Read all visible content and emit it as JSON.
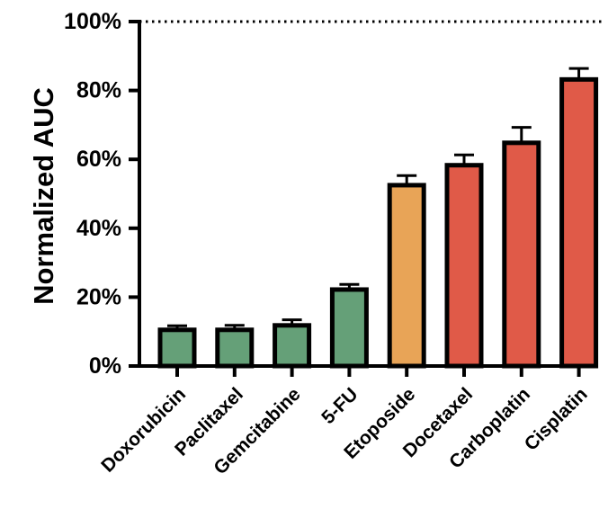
{
  "chart_data": {
    "type": "bar",
    "title": "",
    "xlabel": "",
    "ylabel": "Normalized AUC",
    "ylim": [
      0,
      100
    ],
    "yticks": [
      0,
      20,
      40,
      60,
      80,
      100
    ],
    "ytick_labels": [
      "0%",
      "20%",
      "40%",
      "60%",
      "80%",
      "100%"
    ],
    "reference_line": {
      "y": 100,
      "style": "dotted"
    },
    "categories": [
      "Doxorubicin",
      "Paclitaxel",
      "Gemcitabine",
      "5-FU",
      "Etoposide",
      "Docetaxel",
      "Carboplatin",
      "Cisplatin"
    ],
    "values": [
      10.5,
      10.5,
      11.8,
      22.2,
      52.5,
      58.3,
      64.8,
      83.2
    ],
    "error_upper": [
      1.2,
      1.3,
      1.6,
      1.5,
      2.8,
      3.0,
      4.5,
      3.2
    ],
    "bar_colors": [
      "#65a078",
      "#65a078",
      "#65a078",
      "#65a078",
      "#e8a457",
      "#e05a48",
      "#e05a48",
      "#e05a48"
    ],
    "grid": false,
    "legend": "none"
  }
}
